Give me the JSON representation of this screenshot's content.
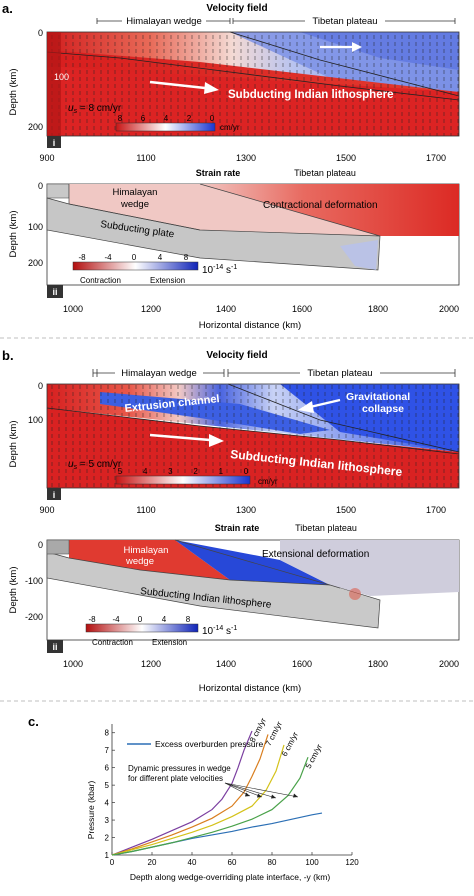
{
  "panel_a": {
    "letter": "a.",
    "velocity": {
      "title": "Velocity field",
      "bracket_left": "Himalayan wedge",
      "bracket_right": "Tibetan plateau",
      "ylabel": "Depth (km)",
      "yticks": [
        "0",
        "100",
        "200"
      ],
      "xticks": [
        "900",
        "1100",
        "1300",
        "1500",
        "1700"
      ],
      "label_slab": "Subducting Indian lithosphere",
      "us_label": "u",
      "us_sub": "s",
      "us_value": " = 8 cm/yr",
      "colorbar_ticks": [
        "8",
        "6",
        "4",
        "2",
        "0"
      ],
      "colorbar_unit": "cm/yr",
      "badge": "i",
      "bottom_right_label": "Tibetan plateau"
    },
    "strain": {
      "title": "Strain rate",
      "label_wedge": "Himalayan\nwedge",
      "label_wedge_1": "Himalayan",
      "label_wedge_2": "wedge",
      "label_plate": "Subducting plate",
      "label_deformation": "Contractional deformation",
      "ylabel": "Depth (km)",
      "yticks": [
        "0",
        "100",
        "200"
      ],
      "xticks": [
        "1000",
        "1200",
        "1400",
        "1600",
        "1800",
        "2000"
      ],
      "xlabel": "Horizontal distance (km)",
      "colorbar_ticks": [
        "-8",
        "-4",
        "0",
        "4",
        "8"
      ],
      "colorbar_unit": "10",
      "colorbar_exp": "-14",
      "colorbar_unit2": " s",
      "colorbar_exp2": "-1",
      "contraction": "Contraction",
      "extension": "Extension",
      "badge": "ii"
    }
  },
  "panel_b": {
    "letter": "b.",
    "velocity": {
      "title": "Velocity field",
      "bracket_left": "Himalayan wedge",
      "bracket_right": "Tibetan plateau",
      "ylabel": "Depth (km)",
      "yticks": [
        "0",
        "100"
      ],
      "xticks": [
        "900",
        "1100",
        "1300",
        "1500",
        "1700"
      ],
      "label_channel": "Extrusion channel",
      "label_slab": "Subducting Indian lithosphere",
      "label_collapse_1": "Gravitational",
      "label_collapse_2": "collapse",
      "us_label": "u",
      "us_sub": "s",
      "us_value": " = 5 cm/yr",
      "colorbar_ticks": [
        "5",
        "4",
        "3",
        "2",
        "1",
        "0"
      ],
      "colorbar_unit": "cm/yr",
      "badge": "i",
      "bottom_right_label": "Tibetan plateau"
    },
    "strain": {
      "title": "Strain rate",
      "label_wedge_1": "Himalayan",
      "label_wedge_2": "wedge",
      "label_plate": "Subducting Indian lithosphere",
      "label_deformation": "Extensional deformation",
      "ylabel": "Depth (km)",
      "yticks": [
        "0",
        "-100",
        "-200"
      ],
      "xticks": [
        "1000",
        "1200",
        "1400",
        "1600",
        "1800",
        "2000"
      ],
      "xlabel": "Horizontal distance (km)",
      "colorbar_ticks": [
        "-8",
        "-4",
        "0",
        "4",
        "8"
      ],
      "colorbar_unit": "10",
      "colorbar_exp": "-14",
      "colorbar_unit2": " s",
      "colorbar_exp2": "-1",
      "contraction": "Contraction",
      "extension": "Extension",
      "badge": "ii"
    }
  },
  "panel_c": {
    "letter": "c.",
    "legend_excess": "Excess overburden pressure",
    "annotation_1": "Dynamic pressures in wedge",
    "annotation_2": "for different plate velocities",
    "ylabel": "Pressure (kbar)",
    "xlabel": "Depth along wedge-overriding plate interface, -y (km)"
  },
  "colors": {
    "red": "#d7201f",
    "blue": "#2343c8",
    "grey": "#c9c9c9",
    "dashed": "#999999"
  },
  "chart_data": {
    "type": "line",
    "xlabel": "Depth along wedge-overriding plate interface, -y (km)",
    "ylabel": "Pressure (kbar)",
    "xlim": [
      0,
      120
    ],
    "ylim": [
      1,
      8.5
    ],
    "x_ticks": [
      0,
      20,
      40,
      60,
      80,
      100,
      120
    ],
    "y_ticks": [
      1,
      2,
      3,
      4,
      5,
      6,
      7,
      8
    ],
    "series": [
      {
        "name": "Excess overburden pressure",
        "color": "#2b6fb5",
        "x": [
          0,
          10,
          20,
          30,
          40,
          50,
          60,
          70,
          80,
          90,
          100,
          105
        ],
        "y": [
          1.0,
          1.2,
          1.45,
          1.7,
          1.95,
          2.15,
          2.35,
          2.6,
          2.8,
          3.05,
          3.3,
          3.4
        ]
      },
      {
        "name": "8 cm/yr",
        "color": "#7b3fa0",
        "x": [
          0,
          10,
          20,
          30,
          40,
          50,
          55,
          60,
          63,
          66,
          70
        ],
        "y": [
          1.0,
          1.45,
          1.9,
          2.4,
          2.9,
          3.6,
          4.2,
          5.1,
          6.0,
          7.0,
          8.1
        ]
      },
      {
        "name": "7 cm/yr",
        "color": "#d97e1f",
        "x": [
          0,
          10,
          20,
          30,
          40,
          50,
          60,
          66,
          70,
          74,
          78
        ],
        "y": [
          1.0,
          1.35,
          1.75,
          2.15,
          2.6,
          3.1,
          3.8,
          4.6,
          5.5,
          6.5,
          7.9
        ]
      },
      {
        "name": "6 cm/yr",
        "color": "#d4c21a",
        "x": [
          0,
          10,
          20,
          30,
          40,
          50,
          60,
          70,
          77,
          82,
          86
        ],
        "y": [
          1.0,
          1.3,
          1.6,
          1.95,
          2.3,
          2.7,
          3.2,
          3.8,
          4.7,
          5.8,
          7.3
        ]
      },
      {
        "name": "5 cm/yr",
        "color": "#4aa24a",
        "x": [
          0,
          10,
          20,
          30,
          40,
          50,
          60,
          70,
          80,
          88,
          94,
          98
        ],
        "y": [
          1.0,
          1.2,
          1.45,
          1.7,
          2.0,
          2.3,
          2.65,
          3.05,
          3.6,
          4.4,
          5.4,
          6.6
        ]
      }
    ]
  }
}
